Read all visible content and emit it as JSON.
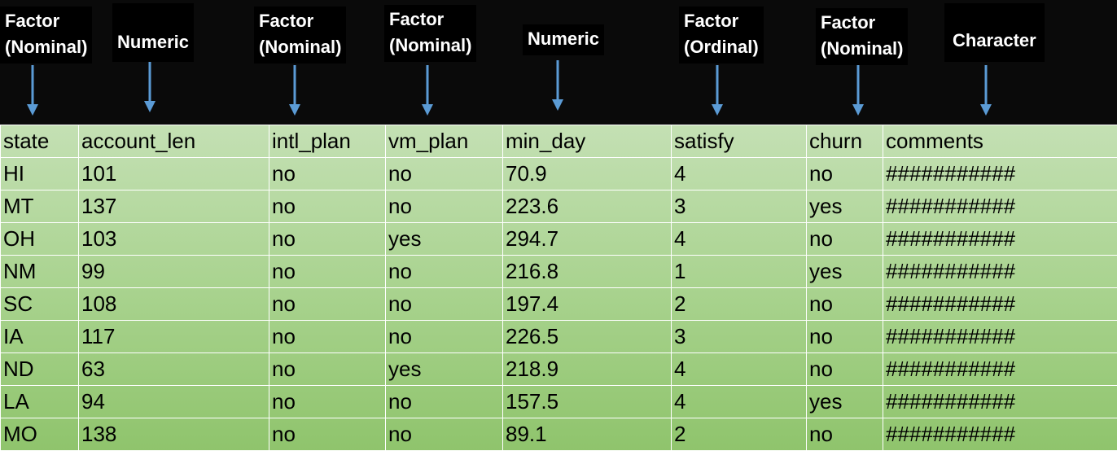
{
  "colors": {
    "top_band": "#0a0a0a",
    "label_text": "#ffffff",
    "arrow": "#5b9bd5",
    "grid_top": "#c4e0b4",
    "grid_bottom": "#8fc46c",
    "cell_border": "#ffffff"
  },
  "icons": {
    "arrow": "down-arrow-icon"
  },
  "annotations": [
    {
      "line1": "Factor",
      "line2": "(Nominal)"
    },
    {
      "line1": "Numeric",
      "line2": ""
    },
    {
      "line1": "Factor",
      "line2": "(Nominal)"
    },
    {
      "line1": "Factor",
      "line2": "(Nominal)"
    },
    {
      "line1": "Numeric",
      "line2": ""
    },
    {
      "line1": "Factor",
      "line2": "(Ordinal)"
    },
    {
      "line1": "Factor",
      "line2": "(Nominal)"
    },
    {
      "line1": "Character",
      "line2": ""
    }
  ],
  "table": {
    "columns": [
      "state",
      "account_len",
      "intl_plan",
      "vm_plan",
      "min_day",
      "satisfy",
      "churn",
      "comments"
    ],
    "rows": [
      [
        "HI",
        "101",
        "no",
        "no",
        "70.9",
        "4",
        "no",
        "###########"
      ],
      [
        "MT",
        "137",
        "no",
        "no",
        "223.6",
        "3",
        "yes",
        "###########"
      ],
      [
        "OH",
        "103",
        "no",
        "yes",
        "294.7",
        "4",
        "no",
        "###########"
      ],
      [
        "NM",
        "99",
        "no",
        "no",
        "216.8",
        "1",
        "yes",
        "###########"
      ],
      [
        "SC",
        "108",
        "no",
        "no",
        "197.4",
        "2",
        "no",
        "###########"
      ],
      [
        "IA",
        "117",
        "no",
        "no",
        "226.5",
        "3",
        "no",
        "###########"
      ],
      [
        "ND",
        "63",
        "no",
        "yes",
        "218.9",
        "4",
        "no",
        "###########"
      ],
      [
        "LA",
        "94",
        "no",
        "no",
        "157.5",
        "4",
        "yes",
        "###########"
      ],
      [
        "MO",
        "138",
        "no",
        "no",
        "89.1",
        "2",
        "no",
        "###########"
      ]
    ]
  }
}
